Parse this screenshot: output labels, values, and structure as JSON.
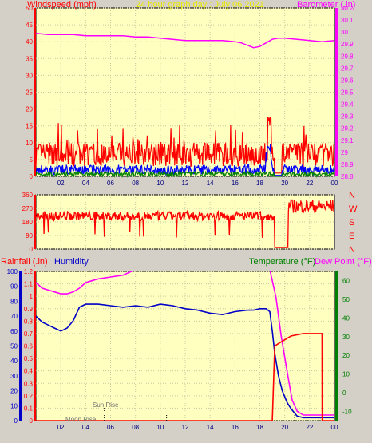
{
  "title": "24 hour graph day : July 06 2021",
  "colors": {
    "background": "#d4d0c8",
    "plot": "#ffffc0",
    "grid": "#c8c8a0",
    "wind": "#ff0000",
    "gust_low": "#0000ff",
    "calm": "#008000",
    "baro": "#ff00ff",
    "humidity": "#0000c8",
    "temp": "#008000",
    "rain": "#ff0000",
    "title": "#e8e800"
  },
  "chart_data": [
    {
      "type": "line",
      "id": "wind_baro",
      "labels": {
        "left": "Windspeed (mph)",
        "right": "Barometer (.in)"
      },
      "x_ticks": [
        "02",
        "04",
        "06",
        "08",
        "10",
        "12",
        "14",
        "16",
        "18",
        "20",
        "22",
        "00"
      ],
      "y_left_ticks": [
        "0",
        "5",
        "10",
        "15",
        "20",
        "25",
        "30",
        "35",
        "40",
        "45",
        "50"
      ],
      "y_left_range": [
        0,
        50
      ],
      "y_right_ticks": [
        "28.8",
        "28.9",
        "29",
        "29.1",
        "29.2",
        "29.3",
        "29.4",
        "29.5",
        "29.6",
        "29.7",
        "29.8",
        "29.9",
        "30",
        "30.1",
        "30.2"
      ],
      "y_right_range": [
        28.8,
        30.2
      ],
      "barometer": {
        "x": [
          0,
          1,
          2,
          3,
          4,
          5,
          6,
          7,
          8,
          9,
          10,
          11,
          12,
          13,
          14,
          15,
          16,
          16.5,
          17,
          17.5,
          18,
          18.5,
          19,
          19.5,
          20,
          21,
          22,
          23,
          24
        ],
        "y": [
          29.99,
          29.98,
          29.98,
          29.98,
          29.97,
          29.97,
          29.97,
          29.97,
          29.96,
          29.96,
          29.95,
          29.94,
          29.93,
          29.93,
          29.93,
          29.93,
          29.92,
          29.91,
          29.89,
          29.87,
          29.88,
          29.91,
          29.94,
          29.95,
          29.95,
          29.94,
          29.93,
          29.92,
          29.93
        ]
      },
      "wind_summary": {
        "speed_typical": [
          3,
          10
        ],
        "peak": {
          "x": 18.8,
          "y": 18
        },
        "dropout_x": [
          19.2,
          19.8
        ]
      }
    },
    {
      "type": "line",
      "id": "direction",
      "labels": {
        "compass": [
          "N",
          "W",
          "S",
          "E",
          "N"
        ]
      },
      "x_ticks": [],
      "y_ticks": [
        "360",
        "270",
        "180",
        "90",
        "0"
      ],
      "y_range": [
        0,
        360
      ],
      "direction_summary": {
        "typical": [
          190,
          250
        ],
        "late": [
          240,
          330
        ],
        "dropout_x": [
          19.2,
          20.3
        ]
      }
    },
    {
      "type": "line",
      "id": "rain_hum_temp",
      "labels": {
        "rain": "Rainfall (.in)",
        "humidity": "Humidity",
        "temperature": "Temperature (°F)",
        "dewpoint": "Dew Point (°F)",
        "sunrise": "Sun Rise",
        "moonrise": "Moon Rise"
      },
      "x_ticks": [
        "02",
        "04",
        "06",
        "08",
        "10",
        "12",
        "14",
        "16",
        "18",
        "20",
        "22",
        "00"
      ],
      "y_hum_ticks": [
        "0",
        "10",
        "20",
        "30",
        "40",
        "50",
        "60",
        "70",
        "80",
        "90",
        "100"
      ],
      "y_hum_range": [
        0,
        100
      ],
      "y_rain_ticks": [
        "0",
        "0.1",
        "0.2",
        "0.3",
        "0.4",
        "0.5",
        "0.6",
        "0.7",
        "0.8",
        "0.9",
        "1",
        "1.1",
        "1.2"
      ],
      "y_rain_range": [
        0,
        1.2
      ],
      "y_temp_ticks": [
        "-10",
        "0",
        "10",
        "20",
        "30",
        "40",
        "50",
        "60"
      ],
      "y_temp_range": [
        -15,
        65
      ],
      "humidity": {
        "x": [
          0,
          0.5,
          1,
          1.5,
          2,
          2.5,
          3,
          3.5,
          4,
          5,
          6,
          7,
          8,
          9,
          10,
          11,
          12,
          13,
          14,
          15,
          16,
          17,
          17.5,
          18,
          18.5,
          18.8,
          19,
          19.2,
          19.5,
          19.8,
          20.2,
          20.5,
          20.8,
          21,
          21.5,
          22,
          23,
          24
        ],
        "y": [
          70,
          66,
          64,
          62,
          60,
          62,
          67,
          76,
          78,
          78,
          77,
          76,
          77,
          76,
          78,
          77,
          75,
          74,
          72,
          71,
          73,
          74,
          74,
          75,
          75,
          73,
          60,
          45,
          30,
          20,
          12,
          8,
          5,
          3,
          2,
          2,
          2,
          2
        ]
      },
      "temperature": {
        "x": [
          0,
          0.5,
          1,
          1.5,
          2,
          2.5,
          3,
          3.5,
          4,
          4.5,
          5,
          6,
          7,
          8,
          9,
          10,
          11,
          12,
          13,
          14,
          15,
          16,
          17,
          18,
          18.8,
          19.3,
          19.7,
          20.2,
          20.6,
          21,
          21.5,
          22,
          23,
          24
        ],
        "y": [
          59,
          56,
          55,
          54,
          53,
          53,
          54,
          56,
          59,
          60,
          61,
          62,
          63,
          66,
          68,
          69,
          70,
          70,
          71,
          71,
          71,
          72,
          70,
          69,
          66,
          51,
          31,
          11,
          -4,
          -10,
          -12,
          -12,
          -12,
          -12
        ]
      },
      "rainfall": {
        "x": [
          0,
          18.8,
          19.0,
          19.2,
          19.5,
          20.0,
          20.5,
          21.5,
          22.5,
          23.0,
          23.01,
          24
        ],
        "y": [
          0,
          0,
          0,
          0.6,
          0.62,
          0.65,
          0.68,
          0.7,
          0.7,
          0.7,
          0,
          0
        ]
      },
      "markers": {
        "sunrise_x": 5.5,
        "moonrise_x": 3.2,
        "tick_x": [
          10.5,
          20.8
        ]
      }
    }
  ]
}
